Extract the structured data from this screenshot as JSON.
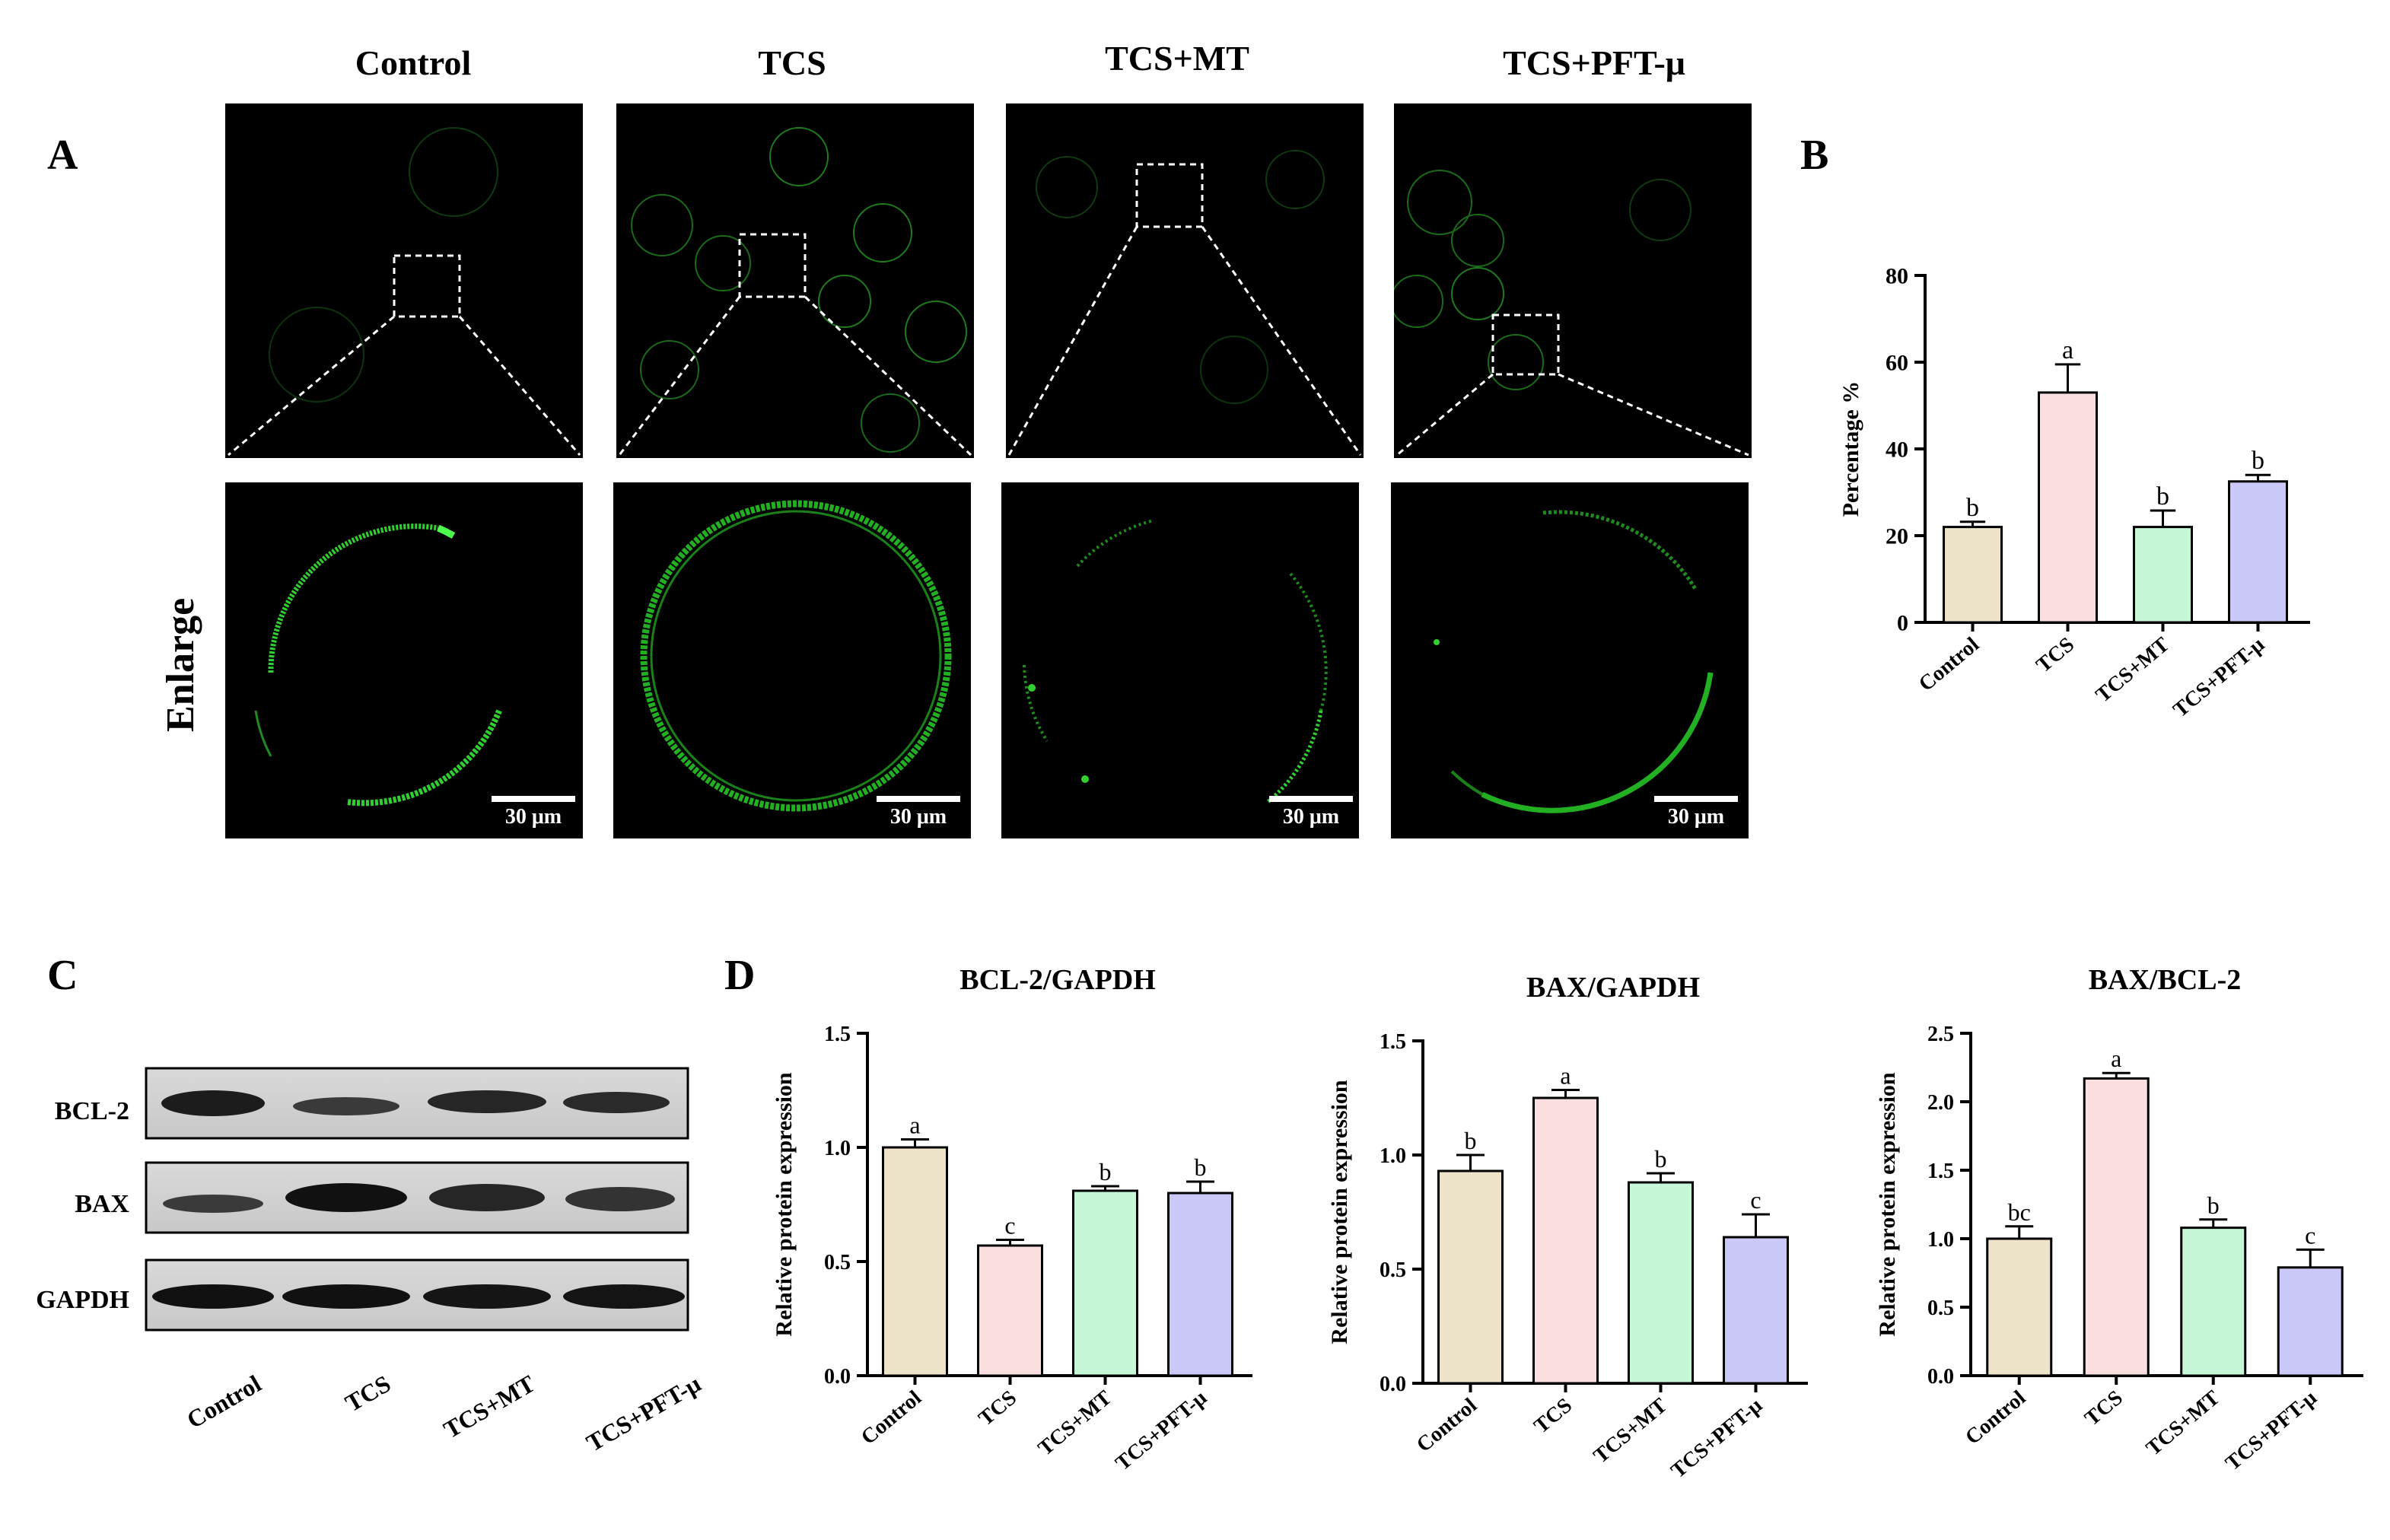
{
  "panels": {
    "A": "A",
    "B": "B",
    "C": "C",
    "D": "D"
  },
  "groups": [
    "Control",
    "TCS",
    "TCS+MT",
    "TCS+PFT-μ"
  ],
  "enlarge_label": "Enlarge",
  "scale_bar_label": "30 μm",
  "blot": {
    "bands": [
      "BCL-2",
      "BAX",
      "GAPDH"
    ],
    "lanes": [
      "Control",
      "TCS",
      "TCS+MT",
      "TCS+PFT-μ"
    ]
  },
  "colors": {
    "Control": "#ece3c8",
    "TCS": "#fbdfdf",
    "TCS+MT": "#c6f7d6",
    "TCS+PFT-μ": "#c9c8f7",
    "fluorescence": "#2fd02f"
  },
  "chart_data": [
    {
      "id": "B",
      "type": "bar",
      "title": "",
      "xlabel": "",
      "ylabel": "Percentage %",
      "categories": [
        "Control",
        "TCS",
        "TCS+MT",
        "TCS+PFT-μ"
      ],
      "values": [
        22,
        53,
        22,
        32.5
      ],
      "errors": [
        1.2,
        6.5,
        3.8,
        1.5
      ],
      "letters": [
        "b",
        "a",
        "b",
        "b"
      ],
      "ylim": [
        0,
        80
      ],
      "yticks": [
        0,
        20,
        40,
        60,
        80
      ]
    },
    {
      "id": "D1",
      "type": "bar",
      "title": "BCL-2/GAPDH",
      "xlabel": "",
      "ylabel": "Relative protein expression",
      "categories": [
        "Control",
        "TCS",
        "TCS+MT",
        "TCS+PFT-μ"
      ],
      "values": [
        1.0,
        0.57,
        0.81,
        0.8
      ],
      "errors": [
        0.035,
        0.025,
        0.02,
        0.05
      ],
      "letters": [
        "a",
        "c",
        "b",
        "b"
      ],
      "ylim": [
        0,
        1.5
      ],
      "yticks": [
        0.0,
        0.5,
        1.0,
        1.5
      ]
    },
    {
      "id": "D2",
      "type": "bar",
      "title": "BAX/GAPDH",
      "xlabel": "",
      "ylabel": "Relative protein expression",
      "categories": [
        "Control",
        "TCS",
        "TCS+MT",
        "TCS+PFT-μ"
      ],
      "values": [
        0.93,
        1.25,
        0.88,
        0.64
      ],
      "errors": [
        0.07,
        0.035,
        0.04,
        0.1
      ],
      "letters": [
        "b",
        "a",
        "b",
        "c"
      ],
      "ylim": [
        0,
        1.5
      ],
      "yticks": [
        0.0,
        0.5,
        1.0,
        1.5
      ]
    },
    {
      "id": "D3",
      "type": "bar",
      "title": "BAX/BCL-2",
      "xlabel": "",
      "ylabel": "Relative protein expression",
      "categories": [
        "Control",
        "TCS",
        "TCS+MT",
        "TCS+PFT-μ"
      ],
      "values": [
        1.0,
        2.17,
        1.08,
        0.79
      ],
      "errors": [
        0.09,
        0.04,
        0.06,
        0.13
      ],
      "letters": [
        "bc",
        "a",
        "b",
        "c"
      ],
      "ylim": [
        0,
        2.5
      ],
      "yticks": [
        0.0,
        0.5,
        1.0,
        1.5,
        2.0,
        2.5
      ]
    }
  ]
}
